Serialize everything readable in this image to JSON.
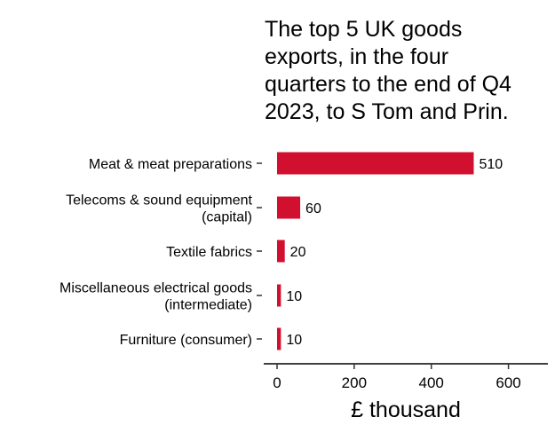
{
  "chart_data": {
    "type": "bar",
    "orientation": "horizontal",
    "title": "The top 5 UK goods exports, in the four quarters to the end of Q4 2023, to S Tom and Prin.",
    "title_lines": [
      "The top 5 UK goods",
      "exports, in the four",
      "quarters to the end of Q4",
      "2023, to S Tom and Prin."
    ],
    "categories": [
      [
        "Meat & meat preparations"
      ],
      [
        "Telecoms & sound equipment",
        "(capital)"
      ],
      [
        "Textile fabrics"
      ],
      [
        "Miscellaneous electrical goods",
        "(intermediate)"
      ],
      [
        "Furniture (consumer)"
      ]
    ],
    "values": [
      510,
      60,
      20,
      10,
      10
    ],
    "data_labels": [
      "510",
      "60",
      "20",
      "10",
      "10"
    ],
    "xlabel": "£ thousand",
    "ylabel": "",
    "xlim": [
      0,
      700
    ],
    "xticks": [
      0,
      200,
      400,
      600
    ],
    "xtick_labels": [
      "0",
      "200",
      "400",
      "600"
    ],
    "grid": false,
    "legend": "none",
    "bar_color": "#d0102e",
    "text_color": "#000000",
    "background_color": "#ffffff"
  }
}
